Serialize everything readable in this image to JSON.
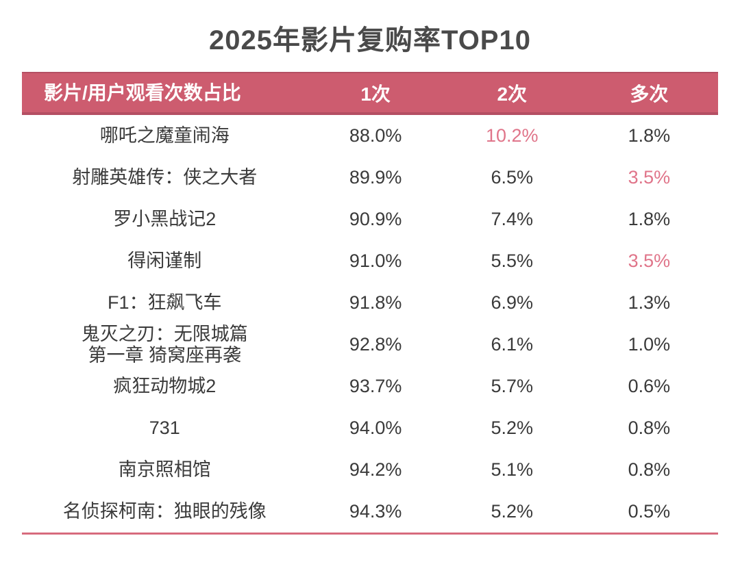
{
  "title": "2025年影片复购率TOP10",
  "colors": {
    "header_bg": "#cd5c6f",
    "header_border": "#b44f63",
    "accent": "#e0758a",
    "text": "#3a3a3a",
    "title_text": "#4a4a4a",
    "table_line": "#d76b7d"
  },
  "chart_data": {
    "type": "table",
    "title": "2025年影片复购率TOP10",
    "columns": [
      "影片/用户观看次数占比",
      "1次",
      "2次",
      "多次"
    ],
    "legend_note": "pink accent marks standout repeat-viewing values",
    "rows": [
      {
        "name": "哪吒之魔童闹海",
        "values": [
          "88.0%",
          "10.2%",
          "1.8%"
        ],
        "accents": [
          false,
          true,
          false
        ]
      },
      {
        "name": "射雕英雄传：侠之大者",
        "values": [
          "89.9%",
          "6.5%",
          "3.5%"
        ],
        "accents": [
          false,
          false,
          true
        ]
      },
      {
        "name": "罗小黑战记2",
        "values": [
          "90.9%",
          "7.4%",
          "1.8%"
        ],
        "accents": [
          false,
          false,
          false
        ]
      },
      {
        "name": "得闲谨制",
        "values": [
          "91.0%",
          "5.5%",
          "3.5%"
        ],
        "accents": [
          false,
          false,
          true
        ]
      },
      {
        "name": "F1：狂飙飞车",
        "values": [
          "91.8%",
          "6.9%",
          "1.3%"
        ],
        "accents": [
          false,
          false,
          false
        ]
      },
      {
        "name": "鬼灭之刃：无限城篇\n第一章 猗窝座再袭",
        "values": [
          "92.8%",
          "6.1%",
          "1.0%"
        ],
        "accents": [
          false,
          false,
          false
        ]
      },
      {
        "name": "疯狂动物城2",
        "values": [
          "93.7%",
          "5.7%",
          "0.6%"
        ],
        "accents": [
          false,
          false,
          false
        ]
      },
      {
        "name": "731",
        "values": [
          "94.0%",
          "5.2%",
          "0.8%"
        ],
        "accents": [
          false,
          false,
          false
        ]
      },
      {
        "name": "南京照相馆",
        "values": [
          "94.2%",
          "5.1%",
          "0.8%"
        ],
        "accents": [
          false,
          false,
          false
        ]
      },
      {
        "name": "名侦探柯南：独眼的残像",
        "values": [
          "94.3%",
          "5.2%",
          "0.5%"
        ],
        "accents": [
          false,
          false,
          false
        ]
      }
    ]
  }
}
